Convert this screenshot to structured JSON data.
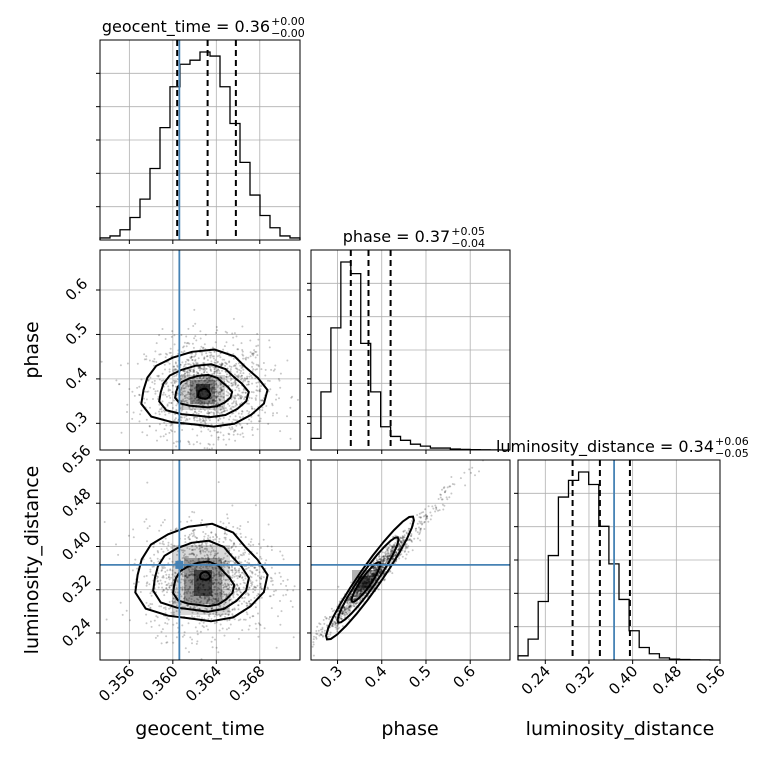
{
  "chart_data": {
    "type": "corner",
    "parameters": [
      "geocent_time",
      "phase",
      "luminosity_distance"
    ],
    "axis_labels": {
      "geocent_time": "geocent_time",
      "phase": "phase",
      "luminosity_distance": "luminosity_distance"
    },
    "ranges": {
      "geocent_time": [
        0.3533,
        0.3717
      ],
      "phase": [
        0.24,
        0.69
      ],
      "luminosity_distance": [
        0.19,
        0.56
      ]
    },
    "ticks": {
      "geocent_time": [
        {
          "v": 0.356,
          "label": "0.356"
        },
        {
          "v": 0.36,
          "label": "0.360"
        },
        {
          "v": 0.364,
          "label": "0.364"
        },
        {
          "v": 0.368,
          "label": "0.368"
        }
      ],
      "phase": [
        {
          "v": 0.3,
          "label": "0.3"
        },
        {
          "v": 0.4,
          "label": "0.4"
        },
        {
          "v": 0.5,
          "label": "0.5"
        },
        {
          "v": 0.6,
          "label": "0.6"
        }
      ],
      "luminosity_distance": [
        {
          "v": 0.24,
          "label": "0.24"
        },
        {
          "v": 0.32,
          "label": "0.32"
        },
        {
          "v": 0.4,
          "label": "0.40"
        },
        {
          "v": 0.48,
          "label": "0.48"
        },
        {
          "v": 0.56,
          "label": "0.56"
        }
      ]
    },
    "titles": {
      "geocent_time": {
        "name": "geocent_time",
        "value": "0.36",
        "plus": "+0.00",
        "minus": "−0.00"
      },
      "phase": {
        "name": "phase",
        "value": "0.37",
        "plus": "+0.05",
        "minus": "−0.04"
      },
      "luminosity_distance": {
        "name": "luminosity_distance",
        "value": "0.34",
        "plus": "+0.06",
        "minus": "−0.05"
      }
    },
    "quantiles": {
      "geocent_time": [
        0.3604,
        0.3632,
        0.3658
      ],
      "phase": [
        0.33,
        0.37,
        0.42
      ],
      "luminosity_distance": [
        0.29,
        0.34,
        0.395
      ]
    },
    "truths": {
      "geocent_time": 0.3606,
      "luminosity_distance": 0.366
    },
    "histograms": {
      "geocent_time": [
        0.01,
        0.02,
        0.05,
        0.11,
        0.2,
        0.35,
        0.55,
        0.75,
        0.86,
        0.88,
        0.92,
        0.9,
        0.75,
        0.57,
        0.38,
        0.22,
        0.12,
        0.06,
        0.02,
        0.01
      ],
      "phase": [
        0.06,
        0.3,
        0.63,
        0.97,
        0.91,
        0.55,
        0.3,
        0.12,
        0.07,
        0.05,
        0.03,
        0.02,
        0.01,
        0.01,
        0.005,
        0.003,
        0.002,
        0.001,
        0.0005,
        0.0
      ],
      "luminosity_distance": [
        0.02,
        0.1,
        0.28,
        0.5,
        0.78,
        0.86,
        0.9,
        0.84,
        0.64,
        0.46,
        0.29,
        0.14,
        0.06,
        0.03,
        0.01,
        0.004,
        0.002,
        0.001,
        0.0005,
        0.0
      ]
    },
    "grid": true
  }
}
